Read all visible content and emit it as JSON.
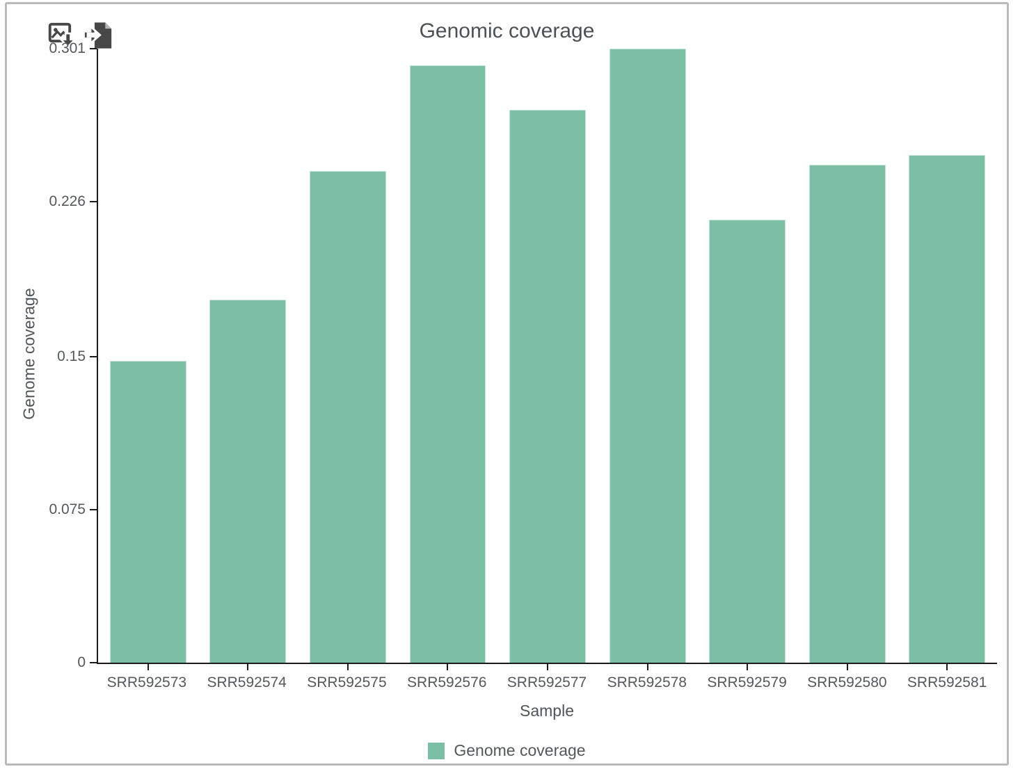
{
  "window": {
    "border_color": "#b9b9b9",
    "background": "#ffffff"
  },
  "toolbar": {
    "buttons": [
      {
        "id": "export-image",
        "icon": "image-download-icon"
      },
      {
        "id": "export-data",
        "icon": "file-export-icon"
      }
    ]
  },
  "chart_data": {
    "type": "bar",
    "title": "Genomic coverage",
    "xlabel": "Sample",
    "ylabel": "Genome coverage",
    "categories": [
      "SRR592573",
      "SRR592574",
      "SRR592575",
      "SRR592576",
      "SRR592577",
      "SRR592578",
      "SRR592579",
      "SRR592580",
      "SRR592581"
    ],
    "series": [
      {
        "name": "Genome coverage",
        "color": "#7bc0a4",
        "values": [
          0.148,
          0.178,
          0.241,
          0.293,
          0.271,
          0.301,
          0.217,
          0.244,
          0.249
        ]
      }
    ],
    "ylim": [
      0,
      0.301
    ],
    "yticks": {
      "values": [
        0,
        0.075,
        0.15,
        0.226,
        0.301
      ],
      "labels": [
        "0",
        "0.075",
        "0.15",
        "0.226",
        "0.301"
      ]
    },
    "grid": false,
    "legend_position": "bottom",
    "axis_color": "#1c1c1c",
    "text_color": "#54585c"
  },
  "legend": {
    "items": [
      {
        "label": "Genome coverage",
        "color": "#7bc0a4"
      }
    ]
  }
}
